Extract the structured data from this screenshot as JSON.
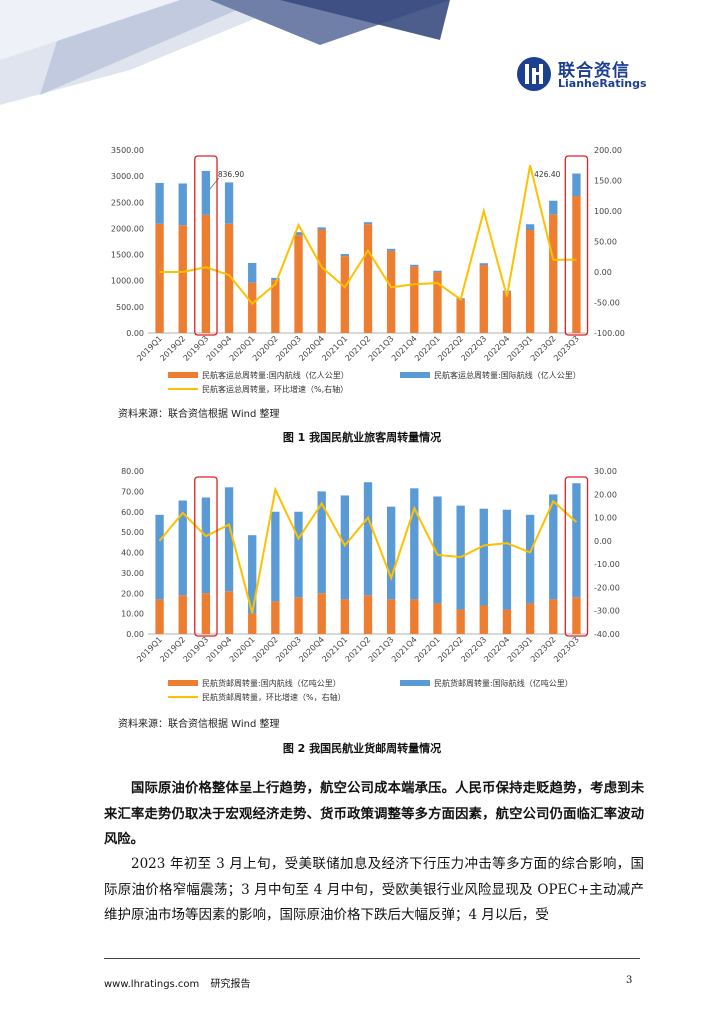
{
  "header": {
    "logo_cn": "联合资信",
    "logo_en": "LianheRatings",
    "colors": {
      "navy": "#1c3f8f",
      "light": "#c9d1e3",
      "mid": "#8a97bc"
    }
  },
  "figures": [
    {
      "source": "资料来源：联合资信根据 Wind 整理",
      "caption": "图 1    我国民航业旅客周转量情况",
      "annotations": [
        "836.90",
        "426.40"
      ],
      "legend": [
        "民航客运总周转量:国内航线（亿人公里）",
        "民航客运总周转量:国际航线（亿人公里）",
        "民航客运总周转量，环比增速（%,右轴）"
      ]
    },
    {
      "source": "资料来源：联合资信根据 Wind 整理",
      "caption": "图 2    我国民航业货邮周转量情况",
      "legend": [
        "民航货邮周转量:国内航线（亿吨公里）",
        "民航货邮周转量:国际航线（亿吨公里）",
        "民航货邮周转量，环比增速（%，右轴）"
      ]
    }
  ],
  "chart_data": [
    {
      "type": "bar",
      "stacked": true,
      "categories": [
        "2019Q1",
        "2019Q2",
        "2019Q3",
        "2019Q4",
        "2020Q1",
        "2020Q2",
        "2020Q3",
        "2020Q4",
        "2021Q1",
        "2021Q2",
        "2021Q3",
        "2021Q4",
        "2022Q1",
        "2022Q2",
        "2022Q3",
        "2022Q4",
        "2023Q1",
        "2023Q2",
        "2023Q3"
      ],
      "series": [
        {
          "name": "民航客运总周转量:国内航线（亿人公里）",
          "color": "#ed7d31",
          "axis": "left",
          "values": [
            2090,
            2060,
            2260,
            2090,
            960,
            1010,
            1870,
            1980,
            1470,
            2080,
            1570,
            1270,
            1160,
            640,
            1300,
            770,
            1970,
            2270,
            2620
          ]
        },
        {
          "name": "民航客运总周转量:国际航线（亿人公里）",
          "color": "#5b9bd5",
          "axis": "left",
          "values": [
            780,
            800,
            840,
            790,
            380,
            45,
            60,
            40,
            40,
            40,
            40,
            35,
            30,
            25,
            35,
            40,
            110,
            260,
            430
          ]
        },
        {
          "name": "民航客运总周转量，环比增速（%,右轴）",
          "type": "line",
          "color": "#ffc000",
          "axis": "right",
          "values": [
            0,
            0,
            8,
            -5,
            -52,
            -20,
            77,
            8,
            -25,
            35,
            -25,
            -20,
            -18,
            -45,
            100,
            -40,
            175,
            20,
            20
          ]
        }
      ],
      "left_axis": {
        "min": 0,
        "max": 3500,
        "ticks": [
          "0.00",
          "500.00",
          "1000.00",
          "1500.00",
          "2000.00",
          "2500.00",
          "3000.00",
          "3500.00"
        ]
      },
      "right_axis": {
        "min": -100,
        "max": 200,
        "ticks": [
          "-100.00",
          "-50.00",
          "0.00",
          "50.00",
          "100.00",
          "150.00",
          "200.00"
        ]
      },
      "highlight": [
        "2019Q3",
        "2023Q3"
      ],
      "legend": "bottom",
      "grid": false
    },
    {
      "type": "bar",
      "stacked": true,
      "categories": [
        "2019Q1",
        "2019Q2",
        "2019Q3",
        "2019Q4",
        "2020Q1",
        "2020Q2",
        "2020Q3",
        "2020Q4",
        "2021Q1",
        "2021Q2",
        "2021Q3",
        "2021Q4",
        "2022Q1",
        "2022Q2",
        "2022Q3",
        "2022Q4",
        "2023Q1",
        "2023Q2",
        "2023Q3"
      ],
      "series": [
        {
          "name": "民航货邮周转量:国内航线（亿吨公里）",
          "color": "#ed7d31",
          "axis": "left",
          "values": [
            17,
            19,
            20,
            21,
            10,
            16,
            18,
            20,
            17,
            19,
            17,
            17,
            15,
            12,
            14,
            12,
            15,
            17,
            18
          ]
        },
        {
          "name": "民航货邮周转量:国际航线（亿吨公里）",
          "color": "#5b9bd5",
          "axis": "left",
          "values": [
            41.5,
            46.5,
            47,
            51,
            38.5,
            44,
            42,
            50,
            51,
            55.5,
            45.5,
            54.5,
            52.5,
            51,
            47.5,
            49,
            43.5,
            51.5,
            56
          ]
        },
        {
          "name": "民航货邮周转量，环比增速（%，右轴）",
          "type": "line",
          "color": "#ffc000",
          "axis": "right",
          "values": [
            0,
            12,
            2,
            7,
            -31,
            22,
            1,
            16,
            -2,
            10,
            -16,
            14,
            -6,
            -7,
            -2,
            -1,
            -5,
            17,
            8
          ]
        }
      ],
      "left_axis": {
        "min": 0,
        "max": 80,
        "ticks": [
          "0.00",
          "10.00",
          "20.00",
          "30.00",
          "40.00",
          "50.00",
          "60.00",
          "70.00",
          "80.00"
        ]
      },
      "right_axis": {
        "min": -40,
        "max": 30,
        "ticks": [
          "-40.00",
          "-30.00",
          "-20.00",
          "-10.00",
          "0.00",
          "10.00",
          "20.00",
          "30.00"
        ]
      },
      "highlight": [
        "2019Q3",
        "2023Q3"
      ],
      "legend": "bottom",
      "grid": false
    }
  ],
  "body": {
    "para1": "国际原油价格整体呈上行趋势，航空公司成本端承压。人民币保持走贬趋势，考虑到未来汇率走势仍取决于宏观经济走势、货币政策调整等多方面因素，航空公司仍面临汇率波动风险。",
    "para2": "2023 年初至 3 月上旬，受美联储加息及经济下行压力冲击等多方面的综合影响，国际原油价格窄幅震荡；3 月中旬至 4 月中旬，受欧美银行业风险显现及 OPEC+主动减产维护原油市场等因素的影响，国际原油价格下跌后大幅反弹；4 月以后，受"
  },
  "footer": {
    "website": "www.lhratings.com",
    "report_type": "研究报告",
    "page_number": "3"
  }
}
